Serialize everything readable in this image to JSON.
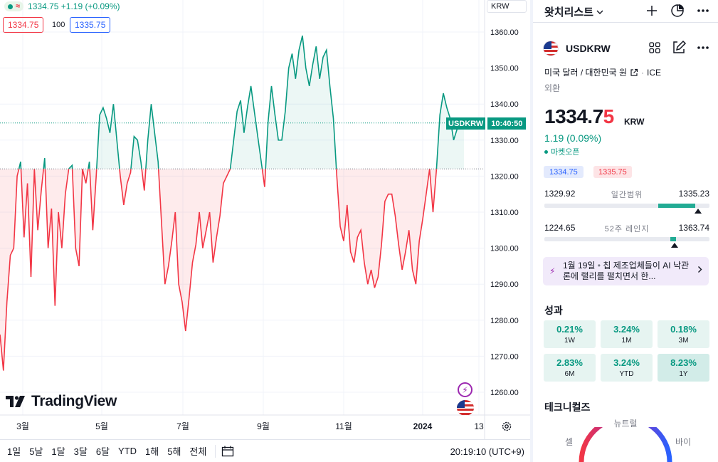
{
  "chart": {
    "legend": {
      "approx_icon": "≈",
      "price_line": "1334.75 +1.19 (+0.09%)"
    },
    "bid": "1334.75",
    "spread": "100",
    "ask": "1335.75",
    "currency_button": "KRW",
    "price_tag_symbol": "USDKRW",
    "price_tag_time": "10:40:50",
    "logo_text": "TradingView",
    "y_ticks": [
      "1360.00",
      "1350.00",
      "1340.00",
      "1330.00",
      "1320.00",
      "1310.00",
      "1300.00",
      "1290.00",
      "1280.00",
      "1270.00",
      "1260.00"
    ],
    "x_ticks": [
      "3월",
      "5월",
      "7월",
      "9월",
      "11월",
      "2024",
      "13"
    ],
    "event_icon": "⚡",
    "settings_icon": "gear-icon"
  },
  "chart_data": {
    "type": "area",
    "baseline": 1322,
    "current": 1334.75,
    "ylim": [
      1253,
      1365
    ],
    "y": [
      1276,
      1266,
      1285,
      1298,
      1300,
      1320,
      1324,
      1303,
      1318,
      1292,
      1322,
      1305,
      1316,
      1325,
      1300,
      1311,
      1284,
      1310,
      1300,
      1315,
      1322,
      1323,
      1300,
      1295,
      1322,
      1318,
      1324,
      1305,
      1320,
      1337,
      1339,
      1336,
      1332,
      1340,
      1330,
      1320,
      1312,
      1318,
      1321,
      1331,
      1330,
      1324,
      1316,
      1330,
      1340,
      1332,
      1324,
      1307,
      1290,
      1295,
      1302,
      1310,
      1290,
      1285,
      1277,
      1286,
      1296,
      1301,
      1310,
      1300,
      1305,
      1310,
      1296,
      1303,
      1309,
      1318,
      1320,
      1322,
      1330,
      1338,
      1341,
      1332,
      1339,
      1345,
      1338,
      1331,
      1324,
      1317,
      1335,
      1345,
      1337,
      1330,
      1330,
      1338,
      1350,
      1354,
      1347,
      1355,
      1359,
      1350,
      1345,
      1351,
      1356,
      1347,
      1353,
      1355,
      1345,
      1336,
      1320,
      1306,
      1302,
      1312,
      1299,
      1296,
      1303,
      1305,
      1296,
      1290,
      1294,
      1289,
      1292,
      1301,
      1313,
      1315,
      1315,
      1309,
      1301,
      1294,
      1299,
      1305,
      1294,
      1290,
      1302,
      1308,
      1315,
      1322,
      1310,
      1322,
      1337,
      1343,
      1339,
      1336,
      1330,
      1333,
      1335,
      1334.75
    ]
  },
  "bottom_bar": {
    "ranges": [
      "1일",
      "5날",
      "1달",
      "3달",
      "6달",
      "YTD",
      "1해",
      "5해",
      "전체"
    ],
    "time": "20:19:10 (UTC+9)"
  },
  "watchlist": {
    "title": "왓치리스트",
    "symbol": "USDKRW",
    "description": "미국 달러 / 대한민국 원",
    "exchange": "ICE",
    "type": "외환",
    "price_main": "1334.7",
    "price_last_digit": "5",
    "price_currency": "KRW",
    "change": "1.19 (0.09%)",
    "market_status": "마켓오픈",
    "bid": "1334.75",
    "ask": "1335.75",
    "day_range": {
      "low": "1329.92",
      "label": "일간범위",
      "high": "1335.23",
      "marker": 0.93
    },
    "week52_range": {
      "low": "1224.65",
      "label": "52주 레인지",
      "high": "1363.74",
      "marker": 0.79
    },
    "news": {
      "date": "1월 19일",
      "headline": "칩 제조업체들이 AI 낙관론에 랠리를 펼치면서 한..."
    },
    "performance_title": "성과",
    "performance": [
      {
        "value": "0.21%",
        "label": "1W"
      },
      {
        "value": "3.24%",
        "label": "1M"
      },
      {
        "value": "0.18%",
        "label": "3M"
      },
      {
        "value": "2.83%",
        "label": "6M"
      },
      {
        "value": "3.24%",
        "label": "YTD"
      },
      {
        "value": "8.23%",
        "label": "1Y"
      }
    ],
    "technicals_title": "테크니컬즈",
    "tech_neutral": "뉴트럴",
    "tech_sell": "셀",
    "tech_buy": "바이"
  },
  "colors": {
    "up": "#089981",
    "down": "#f23645",
    "blue": "#2962ff"
  }
}
